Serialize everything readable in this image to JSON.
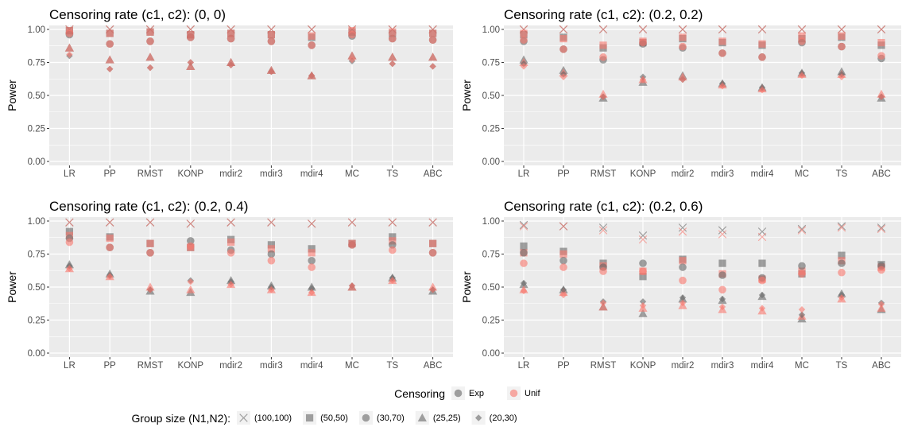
{
  "chart_data": {
    "type": "scatter",
    "categories": [
      "LR",
      "PP",
      "RMST",
      "KONP",
      "mdir2",
      "mdir3",
      "mdir4",
      "MC",
      "TS",
      "ABC"
    ],
    "y_ticks": [
      "0.00",
      "0.25",
      "0.50",
      "0.75",
      "1.00"
    ],
    "ylim": [
      -0.03,
      1.03
    ],
    "ylabel": "Power",
    "grid": true,
    "legend": {
      "position": "bottom",
      "censoring": {
        "title": "Censoring",
        "entries": [
          {
            "label": "Exp",
            "color": "#666666"
          },
          {
            "label": "Unif",
            "color": "#f8766d"
          }
        ]
      },
      "group_size": {
        "title": "Group size (N1,N2):",
        "entries": [
          {
            "label": "(100,100)",
            "shape": "cross"
          },
          {
            "label": "(50,50)",
            "shape": "square"
          },
          {
            "label": "(30,70)",
            "shape": "circle"
          },
          {
            "label": "(25,25)",
            "shape": "triangle"
          },
          {
            "label": "(20,30)",
            "shape": "diamond"
          }
        ]
      }
    },
    "panels": [
      {
        "title": "Censoring rate (c1, c2): (0, 0)",
        "series": [
          {
            "censoring": "Exp",
            "group": "(100,100)",
            "values": [
              1.0,
              1.0,
              1.0,
              1.0,
              1.0,
              1.0,
              1.0,
              1.0,
              1.0,
              1.0
            ]
          },
          {
            "censoring": "Unif",
            "group": "(100,100)",
            "values": [
              1.0,
              1.0,
              1.0,
              1.0,
              1.0,
              1.0,
              1.0,
              1.0,
              1.0,
              1.0
            ]
          },
          {
            "censoring": "Exp",
            "group": "(50,50)",
            "values": [
              0.99,
              0.97,
              0.98,
              0.96,
              0.97,
              0.96,
              0.94,
              0.98,
              0.97,
              0.97
            ]
          },
          {
            "censoring": "Unif",
            "group": "(50,50)",
            "values": [
              0.99,
              0.97,
              0.98,
              0.96,
              0.97,
              0.96,
              0.95,
              0.99,
              0.98,
              0.97
            ]
          },
          {
            "censoring": "Exp",
            "group": "(30,70)",
            "values": [
              0.96,
              0.89,
              0.91,
              0.94,
              0.93,
              0.91,
              0.88,
              0.95,
              0.93,
              0.92
            ]
          },
          {
            "censoring": "Unif",
            "group": "(30,70)",
            "values": [
              0.97,
              0.89,
              0.91,
              0.94,
              0.93,
              0.91,
              0.88,
              0.96,
              0.93,
              0.92
            ]
          },
          {
            "censoring": "Exp",
            "group": "(25,25)",
            "values": [
              0.86,
              0.77,
              0.79,
              0.72,
              0.75,
              0.69,
              0.65,
              0.8,
              0.79,
              0.79
            ]
          },
          {
            "censoring": "Unif",
            "group": "(25,25)",
            "values": [
              0.86,
              0.77,
              0.79,
              0.72,
              0.75,
              0.69,
              0.65,
              0.8,
              0.79,
              0.79
            ]
          },
          {
            "censoring": "Exp",
            "group": "(20,30)",
            "values": [
              0.8,
              0.7,
              0.71,
              0.75,
              0.73,
              0.68,
              0.65,
              0.76,
              0.74,
              0.72
            ]
          },
          {
            "censoring": "Unif",
            "group": "(20,30)",
            "values": [
              0.81,
              0.7,
              0.71,
              0.75,
              0.73,
              0.68,
              0.65,
              0.77,
              0.74,
              0.72
            ]
          }
        ]
      },
      {
        "title": "Censoring rate (c1, c2): (0.2, 0.2)",
        "series": [
          {
            "censoring": "Exp",
            "group": "(100,100)",
            "values": [
              1.0,
              1.0,
              1.0,
              1.0,
              1.0,
              1.0,
              1.0,
              1.0,
              1.0,
              1.0
            ]
          },
          {
            "censoring": "Unif",
            "group": "(100,100)",
            "values": [
              1.0,
              1.0,
              1.0,
              1.0,
              1.0,
              1.0,
              1.0,
              1.0,
              1.0,
              1.0
            ]
          },
          {
            "censoring": "Exp",
            "group": "(50,50)",
            "values": [
              0.96,
              0.94,
              0.86,
              0.9,
              0.93,
              0.9,
              0.88,
              0.93,
              0.94,
              0.88
            ]
          },
          {
            "censoring": "Unif",
            "group": "(50,50)",
            "values": [
              0.97,
              0.93,
              0.88,
              0.91,
              0.94,
              0.91,
              0.89,
              0.95,
              0.95,
              0.9
            ]
          },
          {
            "censoring": "Exp",
            "group": "(30,70)",
            "values": [
              0.91,
              0.85,
              0.77,
              0.89,
              0.86,
              0.82,
              0.79,
              0.9,
              0.87,
              0.78
            ]
          },
          {
            "censoring": "Unif",
            "group": "(30,70)",
            "values": [
              0.92,
              0.85,
              0.79,
              0.9,
              0.87,
              0.82,
              0.79,
              0.91,
              0.87,
              0.8
            ]
          },
          {
            "censoring": "Exp",
            "group": "(25,25)",
            "values": [
              0.77,
              0.69,
              0.48,
              0.6,
              0.65,
              0.59,
              0.56,
              0.67,
              0.68,
              0.48
            ]
          },
          {
            "censoring": "Unif",
            "group": "(25,25)",
            "values": [
              0.75,
              0.67,
              0.51,
              0.62,
              0.64,
              0.58,
              0.55,
              0.66,
              0.66,
              0.51
            ]
          },
          {
            "censoring": "Exp",
            "group": "(20,30)",
            "values": [
              0.74,
              0.66,
              0.49,
              0.64,
              0.62,
              0.59,
              0.56,
              0.67,
              0.66,
              0.49
            ]
          },
          {
            "censoring": "Unif",
            "group": "(20,30)",
            "values": [
              0.72,
              0.64,
              0.49,
              0.62,
              0.62,
              0.57,
              0.54,
              0.65,
              0.64,
              0.49
            ]
          }
        ]
      },
      {
        "title": "Censoring rate (c1, c2): (0.2, 0.4)",
        "series": [
          {
            "censoring": "Exp",
            "group": "(100,100)",
            "values": [
              0.99,
              0.99,
              0.99,
              0.98,
              0.99,
              0.99,
              0.98,
              0.99,
              0.99,
              0.99
            ]
          },
          {
            "censoring": "Unif",
            "group": "(100,100)",
            "values": [
              0.99,
              0.99,
              0.99,
              0.98,
              0.99,
              0.99,
              0.98,
              0.99,
              0.99,
              0.99
            ]
          },
          {
            "censoring": "Exp",
            "group": "(50,50)",
            "values": [
              0.92,
              0.88,
              0.83,
              0.8,
              0.86,
              0.82,
              0.79,
              0.83,
              0.88,
              0.83
            ]
          },
          {
            "censoring": "Unif",
            "group": "(50,50)",
            "values": [
              0.89,
              0.87,
              0.83,
              0.8,
              0.84,
              0.79,
              0.76,
              0.83,
              0.85,
              0.83
            ]
          },
          {
            "censoring": "Exp",
            "group": "(30,70)",
            "values": [
              0.87,
              0.8,
              0.76,
              0.85,
              0.78,
              0.75,
              0.7,
              0.82,
              0.82,
              0.76
            ]
          },
          {
            "censoring": "Unif",
            "group": "(30,70)",
            "values": [
              0.84,
              0.8,
              0.76,
              0.81,
              0.76,
              0.7,
              0.65,
              0.82,
              0.78,
              0.76
            ]
          },
          {
            "censoring": "Exp",
            "group": "(25,25)",
            "values": [
              0.67,
              0.6,
              0.47,
              0.46,
              0.55,
              0.51,
              0.5,
              0.5,
              0.57,
              0.47
            ]
          },
          {
            "censoring": "Unif",
            "group": "(25,25)",
            "values": [
              0.64,
              0.58,
              0.5,
              0.48,
              0.52,
              0.48,
              0.46,
              0.5,
              0.55,
              0.5
            ]
          },
          {
            "censoring": "Exp",
            "group": "(20,30)",
            "values": [
              0.66,
              0.59,
              0.48,
              0.55,
              0.54,
              0.5,
              0.49,
              0.51,
              0.57,
              0.48
            ]
          },
          {
            "censoring": "Unif",
            "group": "(20,30)",
            "values": [
              0.64,
              0.58,
              0.48,
              0.54,
              0.52,
              0.48,
              0.46,
              0.51,
              0.55,
              0.48
            ]
          }
        ]
      },
      {
        "title": "Censoring rate (c1, c2): (0.2, 0.6)",
        "series": [
          {
            "censoring": "Exp",
            "group": "(100,100)",
            "values": [
              0.97,
              0.96,
              0.95,
              0.89,
              0.95,
              0.93,
              0.92,
              0.94,
              0.96,
              0.95
            ]
          },
          {
            "censoring": "Unif",
            "group": "(100,100)",
            "values": [
              0.96,
              0.96,
              0.93,
              0.86,
              0.92,
              0.9,
              0.88,
              0.93,
              0.95,
              0.94
            ]
          },
          {
            "censoring": "Exp",
            "group": "(50,50)",
            "values": [
              0.81,
              0.77,
              0.68,
              0.58,
              0.71,
              0.68,
              0.68,
              0.6,
              0.74,
              0.67
            ]
          },
          {
            "censoring": "Unif",
            "group": "(50,50)",
            "values": [
              0.76,
              0.75,
              0.66,
              0.62,
              0.7,
              0.6,
              0.56,
              0.62,
              0.7,
              0.65
            ]
          },
          {
            "censoring": "Exp",
            "group": "(30,70)",
            "values": [
              0.76,
              0.7,
              0.65,
              0.68,
              0.65,
              0.59,
              0.57,
              0.66,
              0.68,
              0.66
            ]
          },
          {
            "censoring": "Unif",
            "group": "(30,70)",
            "values": [
              0.68,
              0.65,
              0.62,
              0.62,
              0.55,
              0.48,
              0.55,
              0.6,
              0.61,
              0.63
            ]
          },
          {
            "censoring": "Exp",
            "group": "(25,25)",
            "values": [
              0.52,
              0.48,
              0.35,
              0.3,
              0.41,
              0.4,
              0.43,
              0.26,
              0.45,
              0.33
            ]
          },
          {
            "censoring": "Unif",
            "group": "(25,25)",
            "values": [
              0.48,
              0.46,
              0.35,
              0.34,
              0.36,
              0.33,
              0.32,
              0.28,
              0.41,
              0.34
            ]
          },
          {
            "censoring": "Exp",
            "group": "(20,30)",
            "values": [
              0.53,
              0.48,
              0.39,
              0.39,
              0.42,
              0.41,
              0.44,
              0.29,
              0.44,
              0.38
            ]
          },
          {
            "censoring": "Unif",
            "group": "(20,30)",
            "values": [
              0.47,
              0.44,
              0.38,
              0.36,
              0.38,
              0.35,
              0.34,
              0.33,
              0.42,
              0.37
            ]
          }
        ]
      }
    ]
  }
}
